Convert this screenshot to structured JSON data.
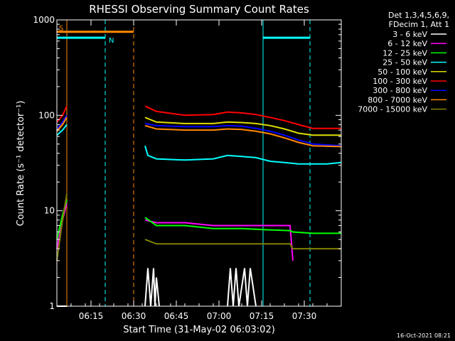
{
  "chart_data": {
    "type": "line",
    "title": "RHESSI Observing Summary Count Rates",
    "xlabel": "Start Time (31-May-02 06:03:02)",
    "ylabel": "Count Rate (s⁻¹ detector⁻¹)",
    "y_scale": "log",
    "ylim": [
      1,
      1000
    ],
    "xlim_minutes": [
      0,
      100
    ],
    "x_ticks": [
      {
        "t": 12,
        "label": "06:15"
      },
      {
        "t": 27,
        "label": "06:30"
      },
      {
        "t": 42,
        "label": "06:45"
      },
      {
        "t": 57,
        "label": "07:00"
      },
      {
        "t": 72,
        "label": "07:15"
      },
      {
        "t": 87,
        "label": "07:30"
      }
    ],
    "y_ticks": [
      {
        "v": 1,
        "label": "1"
      },
      {
        "v": 10,
        "label": "10"
      },
      {
        "v": 100,
        "label": "100"
      },
      {
        "v": 1000,
        "label": "1000"
      }
    ],
    "legend_header": [
      "Det 1,3,4,5,6,9,",
      "FDecim 1, Att 1"
    ],
    "legend_position": "right",
    "series": [
      {
        "name": "3 - 6 keV",
        "color": "#ffffff",
        "x": [
          0,
          3.5,
          31,
          32,
          33,
          34,
          34.5,
          35,
          36,
          60,
          61,
          62,
          63,
          64,
          66,
          67,
          68,
          70
        ],
        "y": [
          1,
          1,
          1,
          2.5,
          1,
          2.5,
          1,
          2,
          1,
          1,
          2.5,
          1,
          2.5,
          1,
          2.5,
          1,
          2.5,
          1
        ]
      },
      {
        "name": "6 - 12 keV",
        "color": "#ff00ff",
        "x": [
          0,
          2,
          3.5,
          31,
          35,
          45,
          55,
          65,
          75,
          82,
          83,
          100
        ],
        "y": [
          4,
          8,
          12,
          8,
          7.5,
          7.5,
          7,
          7,
          7,
          7,
          3,
          4
        ]
      },
      {
        "name": "12 - 25 keV",
        "color": "#00ff00",
        "x": [
          0,
          2,
          3.5,
          31,
          35,
          45,
          55,
          65,
          75,
          82,
          83,
          90,
          100
        ],
        "y": [
          5,
          9,
          13,
          8.5,
          7,
          7,
          6.5,
          6.5,
          6.3,
          6.2,
          6,
          5.8,
          5.8
        ]
      },
      {
        "name": "25 - 50 keV",
        "color": "#00ffff",
        "x": [
          0,
          2,
          3.5,
          31,
          32,
          35,
          45,
          55,
          60,
          65,
          70,
          75,
          80,
          85,
          90,
          95,
          100
        ],
        "y": [
          62,
          70,
          80,
          48,
          38,
          35,
          34,
          35,
          38,
          37,
          36,
          33,
          32,
          31,
          31,
          31,
          32
        ]
      },
      {
        "name": "50 - 100 keV",
        "color": "#dddd00",
        "x": [
          0,
          2,
          3.5,
          31,
          35,
          45,
          55,
          60,
          65,
          70,
          75,
          80,
          85,
          90,
          100
        ],
        "y": [
          70,
          85,
          100,
          95,
          85,
          82,
          82,
          85,
          84,
          82,
          78,
          72,
          65,
          62,
          62
        ]
      },
      {
        "name": "100 - 300 keV",
        "color": "#ff0000",
        "x": [
          0,
          2,
          3.5,
          31,
          35,
          45,
          55,
          60,
          65,
          70,
          75,
          80,
          85,
          90,
          100
        ],
        "y": [
          85,
          100,
          125,
          125,
          110,
          100,
          102,
          108,
          106,
          102,
          95,
          88,
          80,
          73,
          73
        ]
      },
      {
        "name": "300 - 800 keV",
        "color": "#0000ff",
        "x": [
          0,
          2,
          3.5,
          31,
          35,
          45,
          55,
          60,
          65,
          70,
          75,
          80,
          85,
          90,
          100
        ],
        "y": [
          72,
          85,
          100,
          82,
          78,
          76,
          76,
          78,
          77,
          73,
          68,
          62,
          55,
          50,
          48
        ]
      },
      {
        "name": "800 - 7000 keV",
        "color": "#ff8800",
        "x": [
          0,
          2,
          3.5,
          31,
          35,
          45,
          55,
          60,
          65,
          70,
          75,
          80,
          85,
          90,
          100
        ],
        "y": [
          68,
          80,
          95,
          78,
          72,
          70,
          70,
          72,
          71,
          68,
          64,
          58,
          52,
          48,
          47
        ]
      },
      {
        "name": "7000 - 15000 keV",
        "color": "#808000",
        "x": [
          0,
          2,
          3.5,
          31,
          35,
          45,
          55,
          65,
          75,
          82,
          83,
          90,
          100
        ],
        "y": [
          3,
          8,
          15,
          5,
          4.5,
          4.5,
          4.5,
          4.5,
          4.5,
          4.5,
          4,
          4,
          4
        ]
      }
    ],
    "markers": [
      {
        "label": "S",
        "color": "#ff8800",
        "start": 0,
        "end": 27,
        "v": 750
      },
      {
        "label": "N",
        "color": "#00ffff",
        "start": 0,
        "end": 17,
        "v": 650
      },
      {
        "label": "",
        "color": "#00ffff",
        "start": 72.5,
        "end": 89,
        "v": 650
      }
    ],
    "vlines": [
      {
        "t": 3.5,
        "color": "#ff8800",
        "dash": false
      },
      {
        "t": 17,
        "color": "#00ffff",
        "dash": true
      },
      {
        "t": 27,
        "color": "#ff8800",
        "dash": true
      },
      {
        "t": 72.5,
        "color": "#00ffff",
        "dash": false
      },
      {
        "t": 89,
        "color": "#00ffff",
        "dash": true
      }
    ]
  },
  "footer": {
    "timestamp": "16-Oct-2021 08:21"
  }
}
